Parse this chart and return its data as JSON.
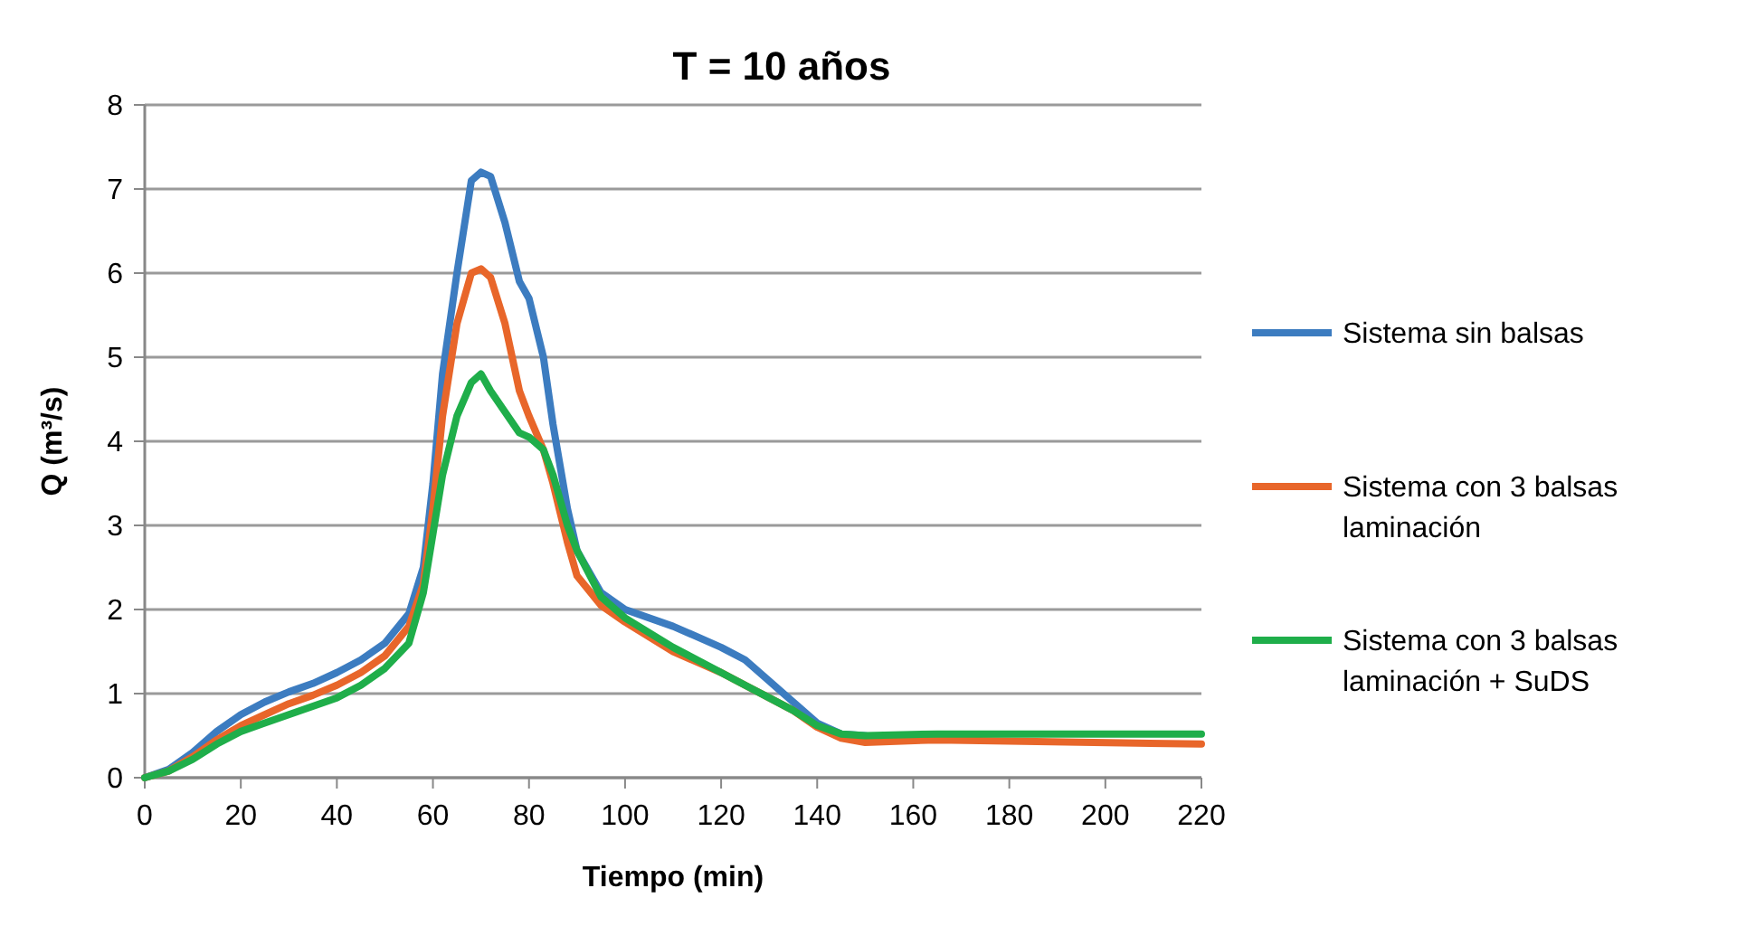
{
  "chart_data": {
    "type": "line",
    "title": "T = 10 años",
    "xlabel": "Tiempo (min)",
    "ylabel": "Q (m³/s)",
    "x": [
      0,
      5,
      10,
      15,
      20,
      25,
      30,
      35,
      40,
      45,
      50,
      55,
      58,
      60,
      62,
      65,
      68,
      70,
      72,
      75,
      78,
      80,
      83,
      85,
      88,
      90,
      95,
      100,
      110,
      120,
      125,
      130,
      135,
      140,
      145,
      150,
      165,
      220
    ],
    "series": [
      {
        "name": "Sistema sin balsas",
        "color": "#3c7cc0",
        "values": [
          0,
          0.1,
          0.3,
          0.55,
          0.75,
          0.9,
          1.02,
          1.12,
          1.25,
          1.4,
          1.6,
          1.95,
          2.5,
          3.5,
          4.8,
          6.0,
          7.1,
          7.2,
          7.15,
          6.6,
          5.9,
          5.7,
          5.0,
          4.2,
          3.2,
          2.7,
          2.2,
          2.0,
          1.8,
          1.55,
          1.4,
          1.15,
          0.9,
          0.65,
          0.52,
          0.5,
          null,
          null
        ]
      },
      {
        "name": "Sistema con 3 balsas laminación",
        "color": "#e8662a",
        "values": [
          0,
          0.08,
          0.25,
          0.45,
          0.62,
          0.75,
          0.88,
          0.98,
          1.1,
          1.25,
          1.45,
          1.8,
          2.3,
          3.2,
          4.3,
          5.4,
          6.0,
          6.05,
          5.95,
          5.4,
          4.6,
          4.3,
          3.9,
          3.5,
          2.8,
          2.4,
          2.05,
          1.85,
          1.5,
          1.25,
          1.1,
          0.95,
          0.8,
          0.6,
          0.47,
          0.42,
          0.45,
          0.4
        ]
      },
      {
        "name": "Sistema con 3 balsas laminación + SuDS",
        "color": "#1fae4a",
        "values": [
          0,
          0.08,
          0.22,
          0.4,
          0.55,
          0.65,
          0.75,
          0.85,
          0.95,
          1.1,
          1.3,
          1.6,
          2.2,
          2.9,
          3.6,
          4.3,
          4.7,
          4.8,
          4.6,
          4.35,
          4.1,
          4.05,
          3.9,
          3.6,
          3.0,
          2.7,
          2.15,
          1.9,
          1.55,
          1.25,
          1.1,
          0.95,
          0.8,
          0.62,
          0.52,
          0.5,
          0.52,
          0.52
        ]
      }
    ],
    "xlim": [
      0,
      220
    ],
    "xticks": [
      0,
      20,
      40,
      60,
      80,
      100,
      120,
      140,
      160,
      180,
      200,
      220
    ],
    "ylim": [
      0,
      8
    ],
    "yticks": [
      0,
      1,
      2,
      3,
      4,
      5,
      6,
      7,
      8
    ],
    "grid": "y",
    "legend": "right",
    "marker": "none",
    "line_style": "solid"
  }
}
